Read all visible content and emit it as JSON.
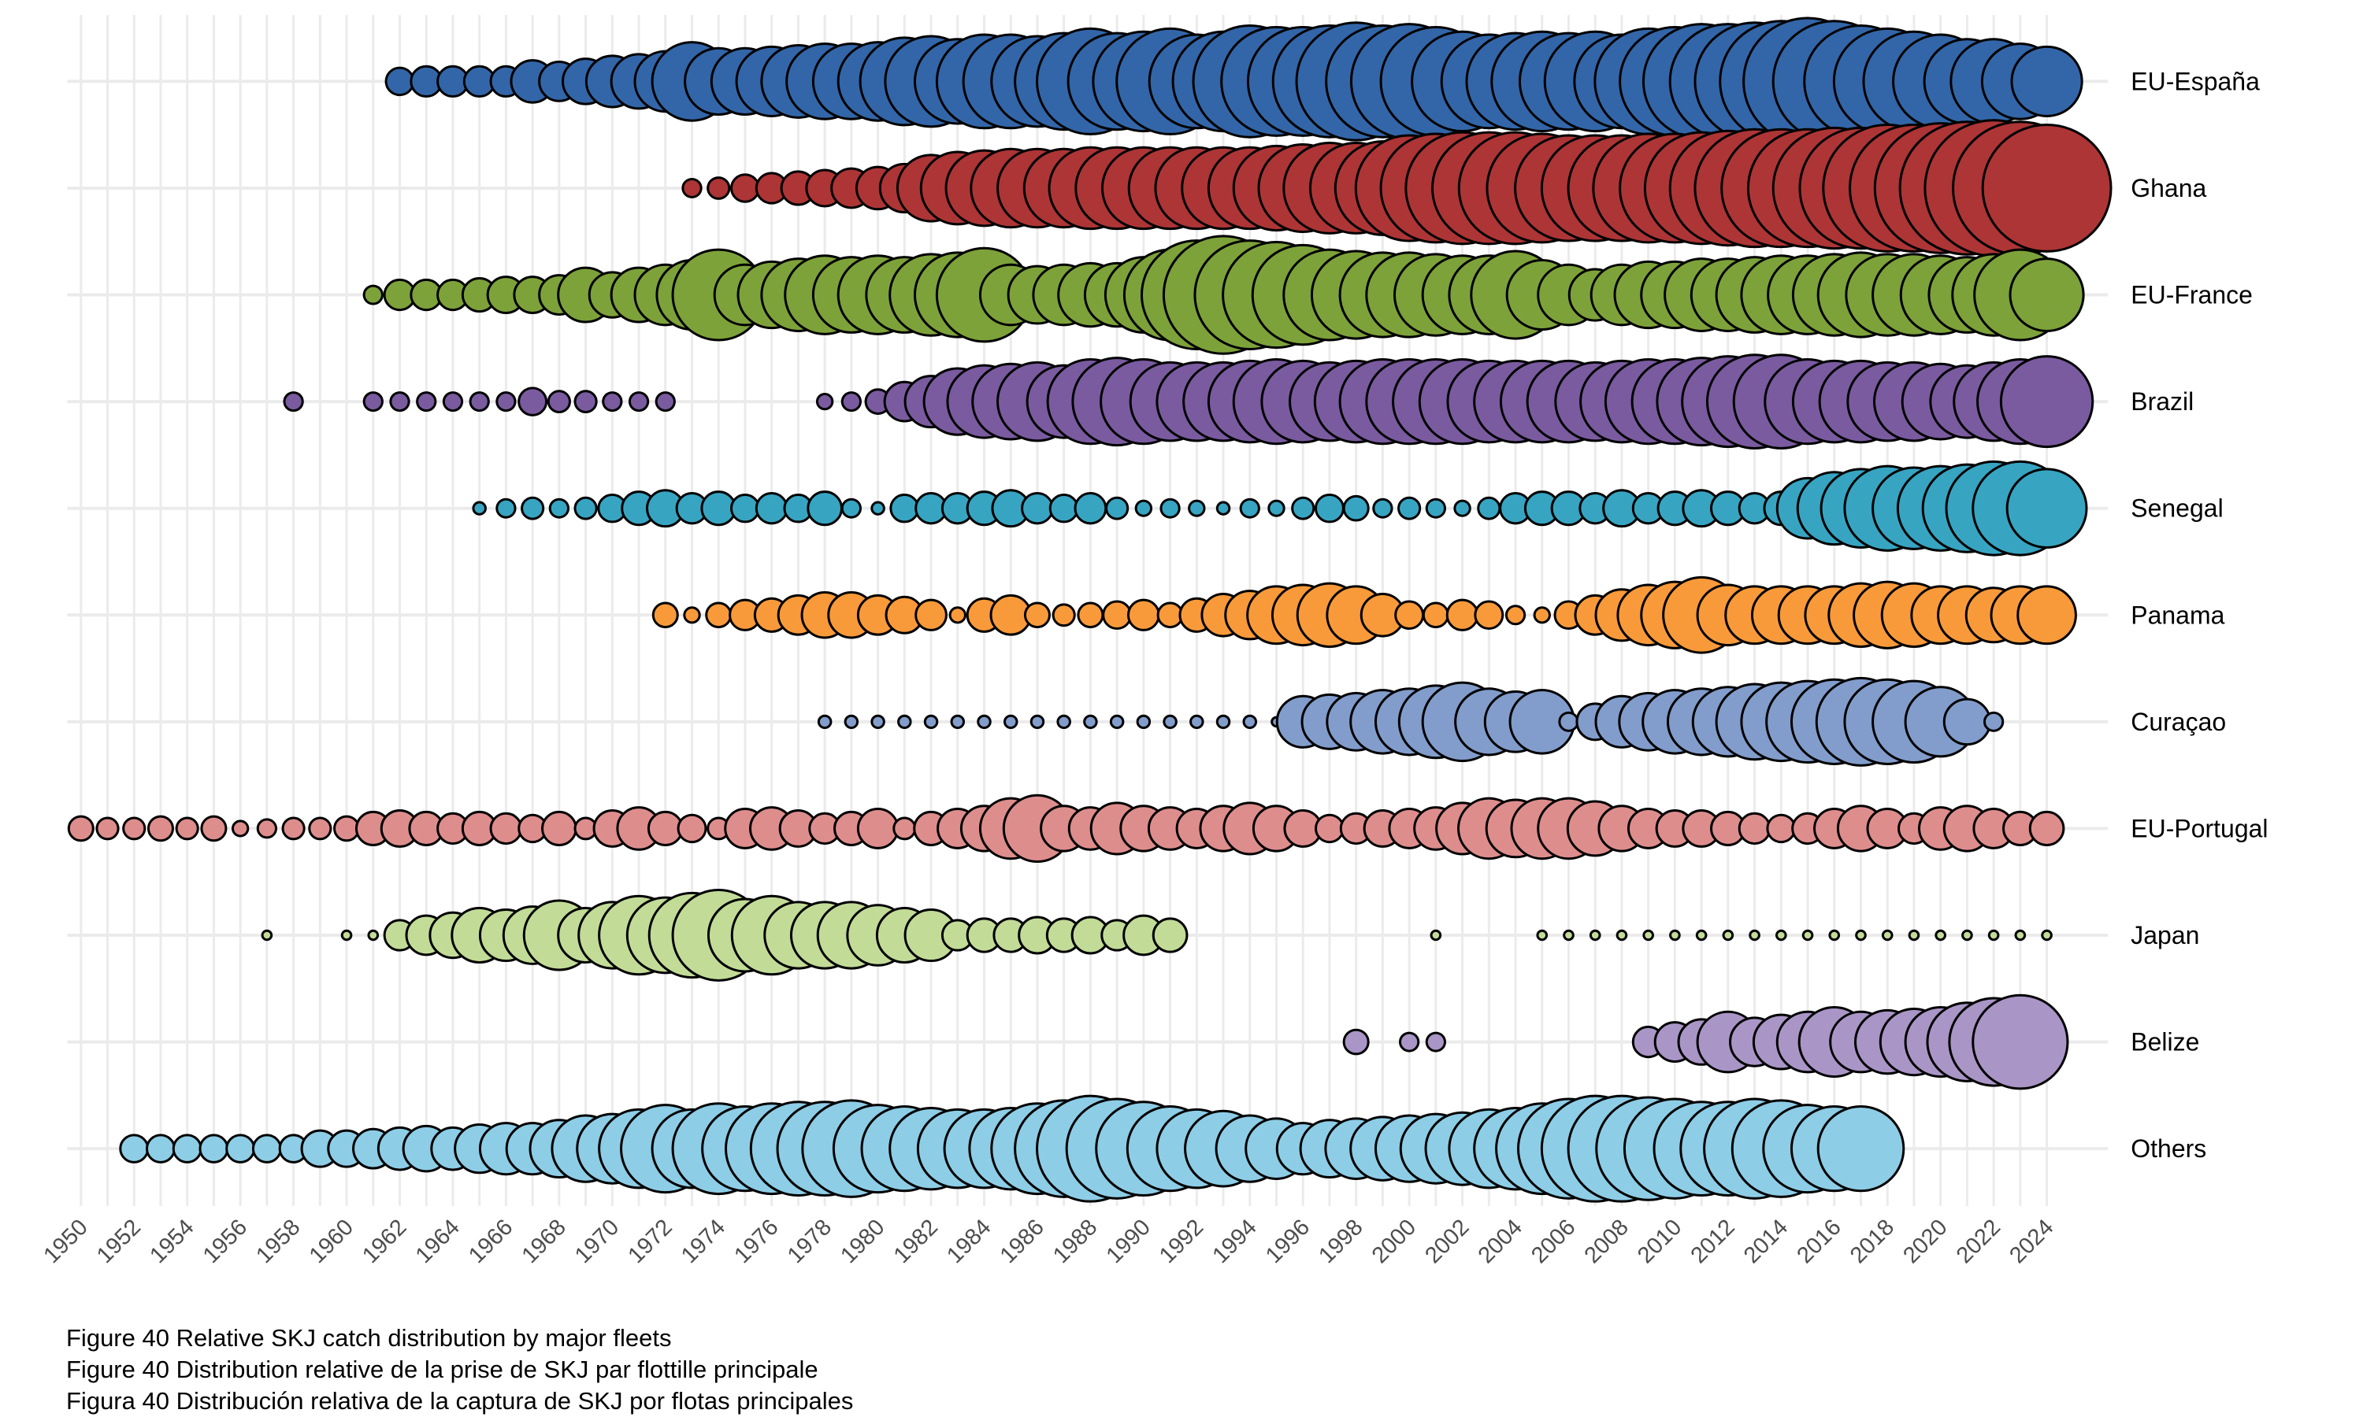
{
  "chart_data": {
    "type": "scatter",
    "subtype": "bubble",
    "title": "",
    "xlabel": "",
    "ylabel": "",
    "x_range": [
      1950,
      2024
    ],
    "x_tick_labels": [
      "1950",
      "1952",
      "1954",
      "1956",
      "1958",
      "1960",
      "1962",
      "1964",
      "1966",
      "1968",
      "1970",
      "1972",
      "1974",
      "1976",
      "1978",
      "1980",
      "1982",
      "1984",
      "1986",
      "1988",
      "1990",
      "1992",
      "1994",
      "1996",
      "1998",
      "2000",
      "2002",
      "2004",
      "2006",
      "2008",
      "2010",
      "2012",
      "2014",
      "2016",
      "2018",
      "2020",
      "2022",
      "2024"
    ],
    "size_note": "relative bubble size (diameter units), estimated",
    "grid": true,
    "legend": "none",
    "series": [
      {
        "name": "EU-España",
        "color": "#3366a8",
        "start": 1962,
        "values": [
          18,
          20,
          20,
          20,
          20,
          28,
          26,
          30,
          34,
          36,
          40,
          52,
          44,
          44,
          46,
          48,
          50,
          50,
          52,
          58,
          60,
          56,
          62,
          62,
          60,
          64,
          70,
          64,
          66,
          70,
          62,
          66,
          74,
          72,
          72,
          74,
          78,
          74,
          76,
          72,
          66,
          62,
          64,
          66,
          64,
          66,
          62,
          70,
          72,
          76,
          76,
          78,
          80,
          84,
          80,
          74,
          70,
          66,
          62,
          56,
          56,
          50,
          46
        ]
      },
      {
        "name": "Ghana",
        "color": "#ad3536",
        "start": 1973,
        "values": [
          12,
          14,
          18,
          20,
          22,
          24,
          26,
          28,
          32,
          44,
          48,
          50,
          52,
          52,
          52,
          54,
          54,
          54,
          54,
          54,
          54,
          54,
          56,
          58,
          60,
          60,
          62,
          70,
          72,
          74,
          74,
          74,
          72,
          70,
          70,
          70,
          72,
          72,
          74,
          76,
          78,
          78,
          78,
          80,
          80,
          84,
          84,
          86,
          88,
          90,
          88,
          84
        ]
      },
      {
        "name": "EU-France",
        "color": "#7da23a",
        "start": 1961,
        "values": [
          12,
          20,
          20,
          20,
          22,
          24,
          24,
          26,
          36,
          30,
          36,
          40,
          46,
          60,
          40,
          44,
          48,
          52,
          50,
          52,
          50,
          54,
          56,
          62,
          40,
          38,
          40,
          42,
          42,
          50,
          60,
          72,
          78,
          72,
          70,
          66,
          60,
          58,
          56,
          56,
          54,
          52,
          52,
          58,
          46,
          40,
          34,
          40,
          44,
          44,
          48,
          48,
          50,
          52,
          52,
          54,
          56,
          54,
          54,
          52,
          50,
          54,
          60,
          48,
          32
        ]
      },
      {
        "name": "Brazil",
        "color": "#7a5b9f",
        "start": 1958,
        "values": [
          12,
          null,
          null,
          12,
          12,
          12,
          12,
          12,
          12,
          18,
          14,
          14,
          12,
          12,
          12,
          null,
          null,
          null,
          null,
          null,
          10,
          12,
          16,
          26,
          34,
          44,
          48,
          50,
          52,
          48,
          56,
          58,
          56,
          52,
          52,
          52,
          54,
          56,
          54,
          52,
          54,
          56,
          56,
          56,
          56,
          54,
          54,
          54,
          54,
          52,
          54,
          56,
          56,
          58,
          60,
          62,
          62,
          56,
          54,
          54,
          52,
          52,
          50,
          48,
          52,
          56,
          60,
          50
        ]
      },
      {
        "name": "Senegal",
        "color": "#37a5c2",
        "start": 1965,
        "values": [
          8,
          12,
          14,
          12,
          14,
          18,
          22,
          24,
          20,
          22,
          18,
          20,
          18,
          22,
          12,
          8,
          18,
          20,
          20,
          22,
          24,
          20,
          18,
          20,
          14,
          10,
          12,
          10,
          8,
          12,
          10,
          14,
          18,
          16,
          12,
          14,
          12,
          10,
          14,
          20,
          22,
          22,
          20,
          24,
          20,
          22,
          24,
          22,
          20,
          22,
          40,
          48,
          52,
          56,
          54,
          56,
          58,
          62,
          62,
          52
        ]
      },
      {
        "name": "Panama",
        "color": "#f99a3a",
        "start": 1972,
        "values": [
          16,
          10,
          16,
          20,
          22,
          26,
          30,
          30,
          26,
          24,
          20,
          10,
          22,
          26,
          16,
          14,
          16,
          18,
          20,
          16,
          22,
          28,
          32,
          38,
          40,
          42,
          38,
          28,
          18,
          16,
          20,
          18,
          12,
          10,
          18,
          26,
          34,
          40,
          44,
          50,
          40,
          38,
          38,
          38,
          38,
          42,
          44,
          42,
          38,
          38,
          36,
          38,
          38,
          32
        ]
      },
      {
        "name": "Curaçao",
        "color": "#829dcb",
        "start": 1978,
        "values": [
          8,
          8,
          8,
          8,
          8,
          8,
          8,
          8,
          8,
          8,
          8,
          8,
          8,
          8,
          8,
          8,
          8,
          6,
          34,
          36,
          38,
          42,
          44,
          48,
          52,
          44,
          40,
          42,
          12,
          24,
          34,
          38,
          42,
          44,
          46,
          50,
          52,
          54,
          56,
          58,
          56,
          54,
          46,
          30,
          12
        ]
      },
      {
        "name": "EU-Portugal",
        "color": "#de8d8d",
        "start": 1950,
        "values": [
          16,
          14,
          14,
          16,
          14,
          16,
          10,
          12,
          14,
          14,
          16,
          22,
          24,
          22,
          20,
          22,
          20,
          18,
          22,
          14,
          24,
          28,
          22,
          18,
          14,
          26,
          28,
          24,
          20,
          22,
          26,
          14,
          22,
          26,
          30,
          40,
          44,
          30,
          28,
          34,
          30,
          28,
          26,
          30,
          34,
          30,
          24,
          18,
          20,
          24,
          26,
          28,
          34,
          40,
          38,
          40,
          40,
          36,
          30,
          26,
          24,
          24,
          22,
          20,
          18,
          20,
          26,
          30,
          26,
          20,
          28,
          30,
          26,
          22,
          22
        ]
      },
      {
        "name": "Japan",
        "color": "#c2dc98",
        "start": 1957,
        "values": [
          6,
          null,
          null,
          6,
          6,
          20,
          26,
          30,
          36,
          34,
          38,
          46,
          36,
          44,
          52,
          50,
          56,
          60,
          48,
          52,
          44,
          44,
          44,
          40,
          36,
          34,
          20,
          22,
          22,
          24,
          22,
          24,
          20,
          26,
          22,
          null,
          null,
          null,
          null,
          null,
          null,
          null,
          null,
          null,
          6,
          null,
          null,
          null,
          6,
          6,
          6,
          6,
          6,
          6,
          6,
          6,
          6,
          6,
          6,
          6,
          6,
          6,
          6,
          6,
          6,
          6,
          6,
          6
        ]
      },
      {
        "name": "Belize",
        "color": "#a996c6",
        "start": 1998,
        "values": [
          16,
          null,
          12,
          12,
          null,
          null,
          null,
          null,
          null,
          null,
          null,
          20,
          26,
          30,
          40,
          32,
          36,
          40,
          46,
          40,
          42,
          44,
          46,
          52,
          58,
          62
        ]
      },
      {
        "name": "Others",
        "color": "#8ecde6",
        "start": 1952,
        "values": [
          18,
          18,
          18,
          18,
          18,
          18,
          18,
          24,
          24,
          26,
          28,
          30,
          28,
          32,
          34,
          34,
          38,
          44,
          46,
          52,
          58,
          52,
          60,
          56,
          60,
          62,
          62,
          64,
          58,
          56,
          54,
          52,
          52,
          54,
          60,
          64,
          70,
          66,
          62,
          56,
          52,
          50,
          44,
          40,
          34,
          38,
          40,
          42,
          44,
          46,
          48,
          52,
          54,
          60,
          66,
          70,
          70,
          68,
          66,
          62,
          62,
          66,
          64,
          58,
          56,
          56
        ]
      }
    ]
  },
  "caption": {
    "line1": "Figure 40 Relative SKJ catch distribution by major fleets",
    "line2": "Figure 40 Distribution relative de la prise de SKJ par flottille principale",
    "line3": "Figura 40 Distribución relativa de la captura de SKJ por flotas principales"
  }
}
